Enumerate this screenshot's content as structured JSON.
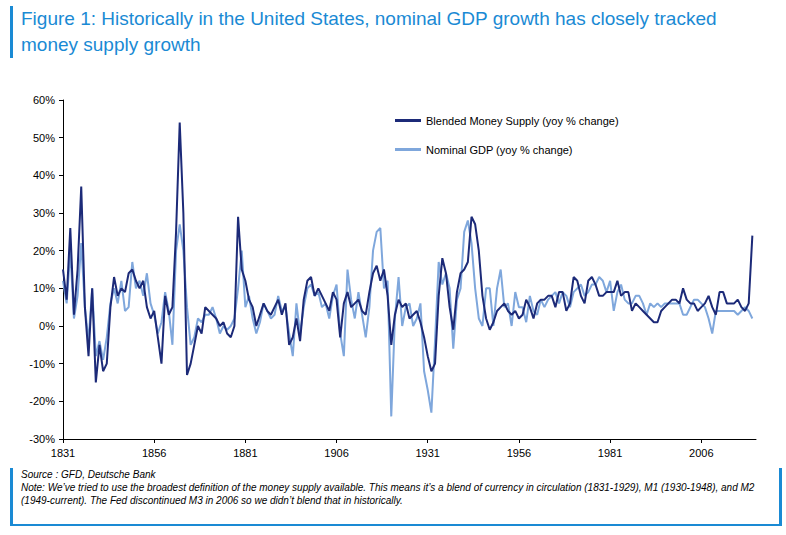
{
  "chart_data": {
    "type": "line",
    "title": "Figure 1: Historically in the United States, nominal GDP growth has closely tracked money supply growth",
    "source": "Source : GFD, Deutsche Bank",
    "note": "Note: We’ve tried to use the broadest definition of the money supply available. This means it’s a blend of currency in circulation (1831-1929), M1 (1930-1948), and M2 (1949-current). The Fed discontinued M3 in 2006 so we didn’t blend that in historically.",
    "x": [
      1831,
      1832,
      1833,
      1834,
      1835,
      1836,
      1837,
      1838,
      1839,
      1840,
      1841,
      1842,
      1843,
      1844,
      1845,
      1846,
      1847,
      1848,
      1849,
      1850,
      1851,
      1852,
      1853,
      1854,
      1855,
      1856,
      1857,
      1858,
      1859,
      1860,
      1861,
      1862,
      1863,
      1864,
      1865,
      1866,
      1867,
      1868,
      1869,
      1870,
      1871,
      1872,
      1873,
      1874,
      1875,
      1876,
      1877,
      1878,
      1879,
      1880,
      1881,
      1882,
      1883,
      1884,
      1885,
      1886,
      1887,
      1888,
      1889,
      1890,
      1891,
      1892,
      1893,
      1894,
      1895,
      1896,
      1897,
      1898,
      1899,
      1900,
      1901,
      1902,
      1903,
      1904,
      1905,
      1906,
      1907,
      1908,
      1909,
      1910,
      1911,
      1912,
      1913,
      1914,
      1915,
      1916,
      1917,
      1918,
      1919,
      1920,
      1921,
      1922,
      1923,
      1924,
      1925,
      1926,
      1927,
      1928,
      1929,
      1930,
      1931,
      1932,
      1933,
      1934,
      1935,
      1936,
      1937,
      1938,
      1939,
      1940,
      1941,
      1942,
      1943,
      1944,
      1945,
      1946,
      1947,
      1948,
      1949,
      1950,
      1951,
      1952,
      1953,
      1954,
      1955,
      1956,
      1957,
      1958,
      1959,
      1960,
      1961,
      1962,
      1963,
      1964,
      1965,
      1966,
      1967,
      1968,
      1969,
      1970,
      1971,
      1972,
      1973,
      1974,
      1975,
      1976,
      1977,
      1978,
      1979,
      1980,
      1981,
      1982,
      1983,
      1984,
      1985,
      1986,
      1987,
      1988,
      1989,
      1990,
      1991,
      1992,
      1993,
      1994,
      1995,
      1996,
      1997,
      1998,
      1999,
      2000,
      2001,
      2002,
      2003,
      2004,
      2005,
      2006,
      2007,
      2008,
      2009,
      2010,
      2011,
      2012,
      2013,
      2014,
      2015,
      2016,
      2017,
      2018,
      2019,
      2020
    ],
    "series": [
      {
        "name": "Blended Money Supply (yoy % change)",
        "color": "#1c2a78",
        "values": [
          15,
          7,
          26,
          3,
          15,
          37,
          5,
          -8,
          10,
          -15,
          -5,
          -12,
          -10,
          5,
          13,
          8,
          10,
          9,
          14,
          15,
          12,
          10,
          12,
          5,
          2,
          4,
          -3,
          -10,
          8,
          3,
          5,
          25,
          54,
          30,
          -13,
          -10,
          -5,
          0,
          -2,
          5,
          4,
          3,
          2,
          0,
          1,
          -2,
          -3,
          0,
          29,
          15,
          12,
          7,
          5,
          0,
          3,
          6,
          4,
          3,
          5,
          7,
          3,
          6,
          -5,
          -3,
          2,
          -4,
          7,
          12,
          13,
          8,
          10,
          8,
          6,
          4,
          9,
          7,
          -3,
          6,
          9,
          5,
          6,
          7,
          4,
          3,
          9,
          14,
          16,
          12,
          15,
          8,
          -5,
          3,
          7,
          5,
          6,
          2,
          3,
          4,
          1,
          -3,
          -8,
          -12,
          -10,
          8,
          18,
          14,
          5,
          -1,
          9,
          14,
          15,
          17,
          29,
          27,
          20,
          8,
          2,
          -1,
          1,
          4,
          5,
          6,
          4,
          3,
          4,
          2,
          3,
          7,
          5,
          2,
          6,
          7,
          7,
          8,
          8,
          5,
          9,
          9,
          4,
          6,
          13,
          12,
          8,
          6,
          12,
          13,
          11,
          8,
          8,
          9,
          9,
          9,
          12,
          8,
          9,
          9,
          4,
          6,
          5,
          4,
          3,
          2,
          1,
          1,
          4,
          5,
          6,
          7,
          7,
          6,
          10,
          7,
          6,
          6,
          4,
          5,
          6,
          8,
          5,
          3,
          9,
          9,
          6,
          6,
          6,
          7,
          5,
          4,
          6,
          24
        ]
      },
      {
        "name": "Nominal GDP (yoy % change)",
        "color": "#7fa7dc",
        "values": [
          12,
          6,
          20,
          2,
          8,
          22,
          5,
          -4,
          10,
          -8,
          -4,
          -9,
          -3,
          6,
          10,
          6,
          12,
          4,
          5,
          17,
          10,
          12,
          8,
          14,
          6,
          3,
          -2,
          1,
          9,
          4,
          -5,
          20,
          27,
          20,
          5,
          -5,
          -3,
          2,
          1,
          3,
          3,
          5,
          2,
          -2,
          0,
          -1,
          0,
          2,
          10,
          20,
          5,
          8,
          2,
          -2,
          1,
          6,
          4,
          2,
          3,
          8,
          4,
          5,
          -2,
          -8,
          6,
          -2,
          5,
          10,
          11,
          8,
          9,
          5,
          6,
          2,
          8,
          11,
          -2,
          -8,
          15,
          7,
          2,
          9,
          3,
          -3,
          5,
          20,
          25,
          26,
          10,
          12,
          -24,
          2,
          13,
          0,
          5,
          6,
          0,
          2,
          6,
          -12,
          -17,
          -23,
          -4,
          17,
          11,
          14,
          10,
          -6,
          7,
          10,
          25,
          28,
          22,
          10,
          2,
          0,
          10,
          10,
          0,
          10,
          15,
          5,
          6,
          0,
          9,
          5,
          5,
          1,
          8,
          4,
          3,
          7,
          5,
          7,
          8,
          9,
          6,
          9,
          8,
          5,
          9,
          10,
          11,
          8,
          9,
          11,
          11,
          13,
          12,
          9,
          12,
          4,
          9,
          11,
          7,
          6,
          6,
          8,
          8,
          6,
          3,
          6,
          5,
          6,
          5,
          6,
          6,
          6,
          6,
          6,
          3,
          3,
          5,
          7,
          7,
          6,
          5,
          2,
          -2,
          4,
          4,
          4,
          4,
          4,
          4,
          3,
          4,
          5,
          4,
          2
        ]
      }
    ],
    "xlim": [
      1831,
      2021
    ],
    "xticks": [
      1831,
      1856,
      1881,
      1906,
      1931,
      1956,
      1981,
      2006
    ],
    "ylim": [
      -30,
      60
    ],
    "yticks": [
      {
        "value": -30,
        "label": "-30%"
      },
      {
        "value": -20,
        "label": "-20%"
      },
      {
        "value": -10,
        "label": "-10%"
      },
      {
        "value": 0,
        "label": "0%"
      },
      {
        "value": 10,
        "label": "10%"
      },
      {
        "value": 20,
        "label": "20%"
      },
      {
        "value": 30,
        "label": "30%"
      },
      {
        "value": 40,
        "label": "40%"
      },
      {
        "value": 50,
        "label": "50%"
      },
      {
        "value": 60,
        "label": "60%"
      }
    ],
    "grid": false,
    "legend": "top"
  }
}
